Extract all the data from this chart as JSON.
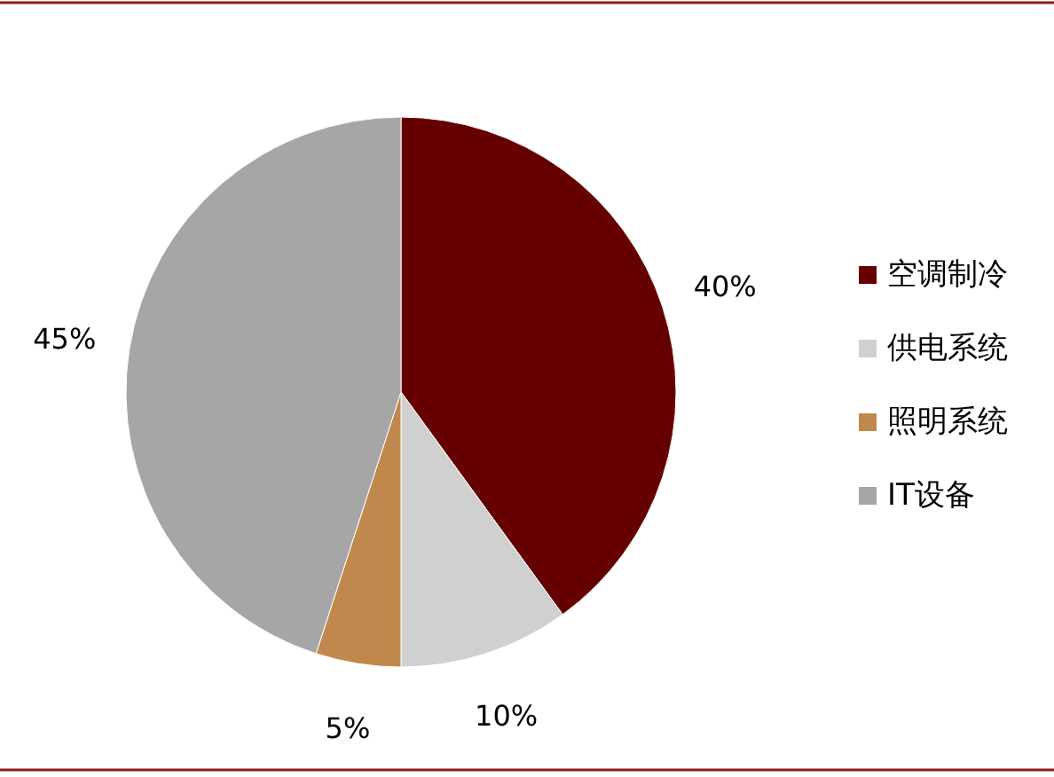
{
  "chart_data": {
    "type": "pie",
    "categories": [
      "空调制冷",
      "供电系统",
      "照明系统",
      "IT设备"
    ],
    "values": [
      40,
      10,
      5,
      45
    ],
    "colors": [
      "#660000",
      "#d0d0d0",
      "#c0884c",
      "#a6a6a6"
    ],
    "value_labels": [
      "40%",
      "10%",
      "5%",
      "45%"
    ],
    "legend": "right"
  }
}
